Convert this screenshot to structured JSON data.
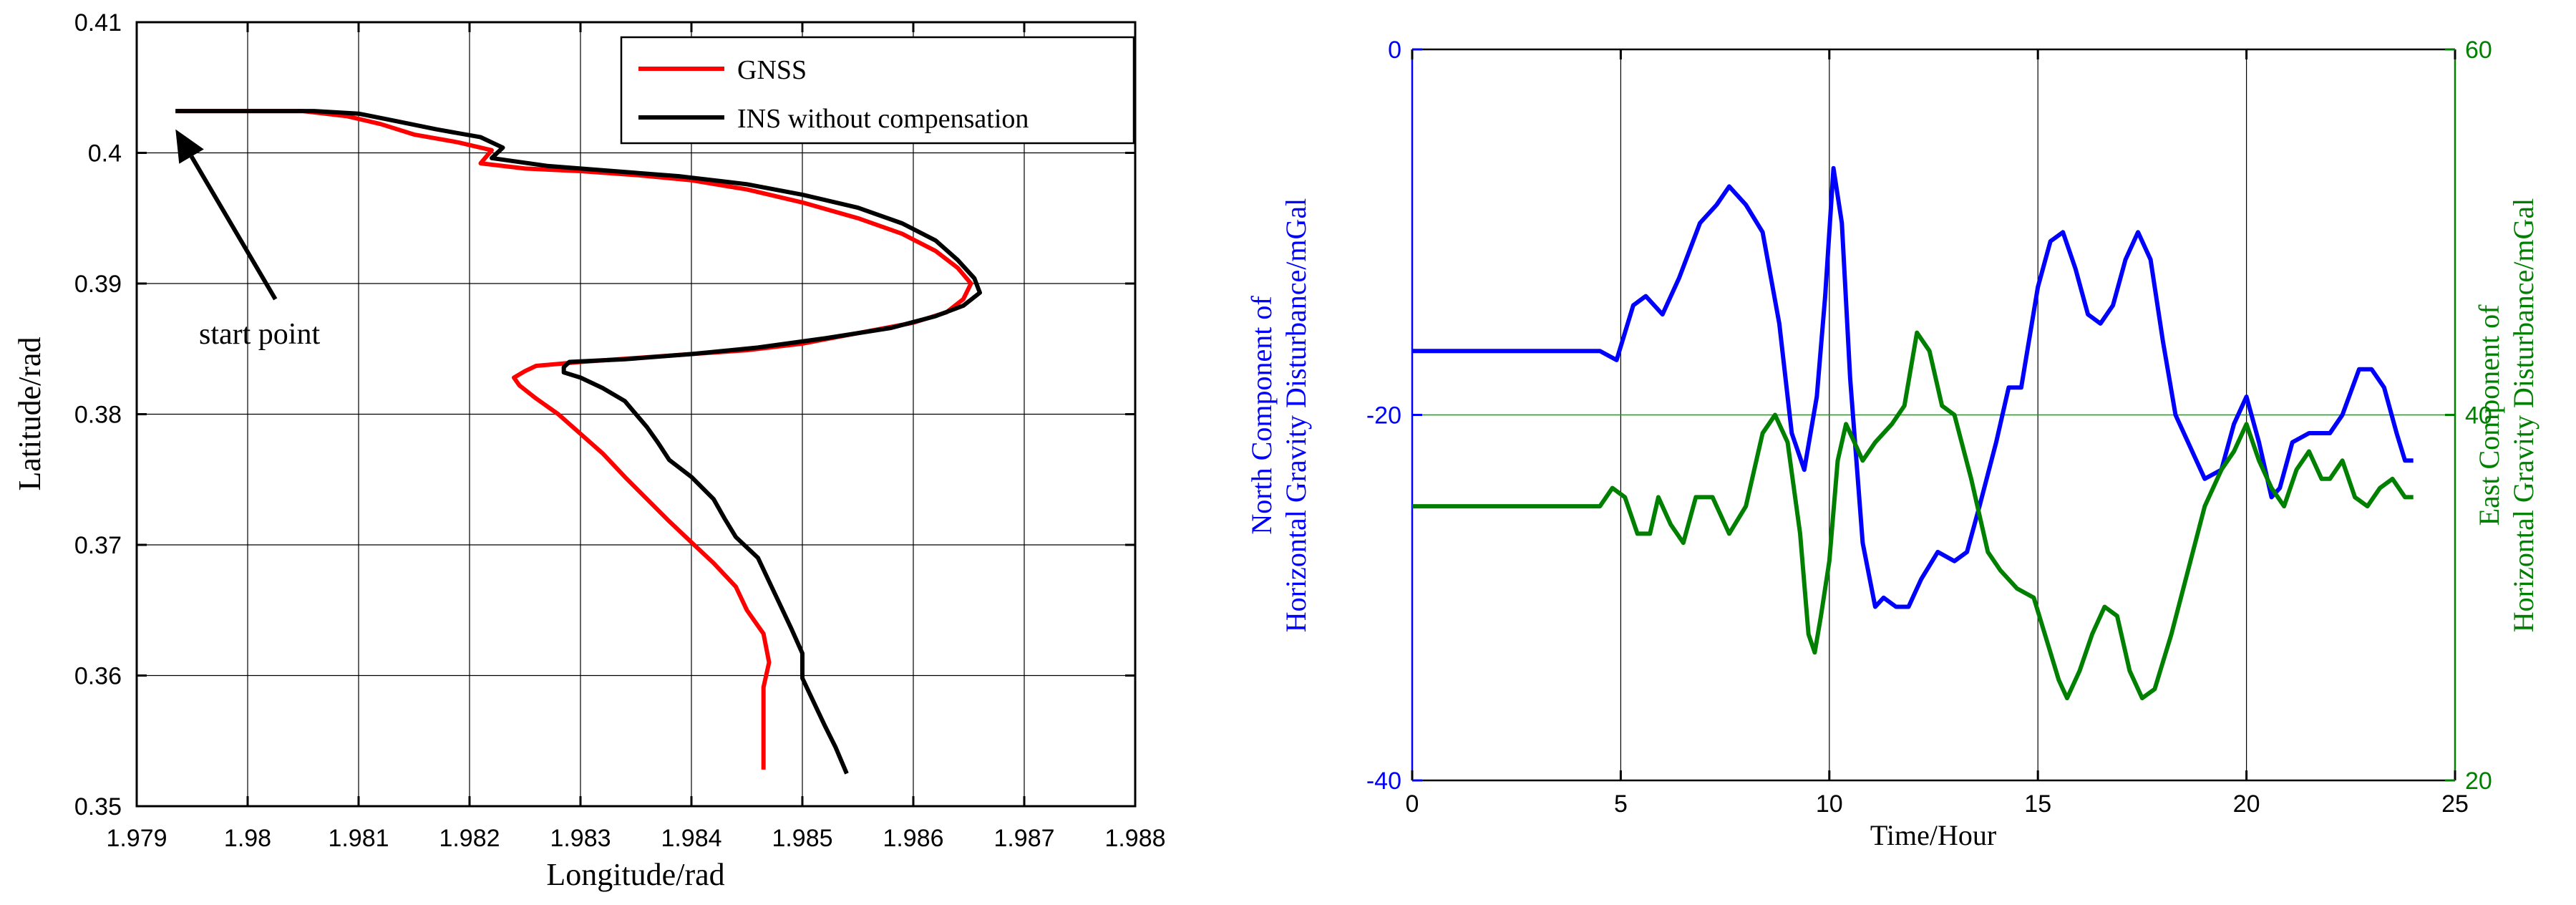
{
  "chart_data": [
    {
      "type": "line",
      "xlabel": "Longitude/rad",
      "ylabel": "Latitude/rad",
      "xlim": [
        1.979,
        1.988
      ],
      "ylim": [
        0.35,
        0.41
      ],
      "xticks": [
        "1.979",
        "1.98",
        "1.981",
        "1.982",
        "1.983",
        "1.984",
        "1.985",
        "1.986",
        "1.987",
        "1.988"
      ],
      "yticks": [
        "0.35",
        "0.36",
        "0.37",
        "0.38",
        "0.39",
        "0.4",
        "0.41"
      ],
      "grid": true,
      "legend_position": "top-right",
      "annotation": {
        "text": "start point",
        "arrow_from": [
          1.98025,
          0.3888
        ],
        "arrow_to": [
          1.97935,
          0.4018
        ]
      },
      "series": [
        {
          "name": "GNSS",
          "color": "#ff0000",
          "points": [
            [
              1.97935,
              0.4032
            ],
            [
              1.9805,
              0.4032
            ],
            [
              1.9809,
              0.4028
            ],
            [
              1.9812,
              0.4022
            ],
            [
              1.9815,
              0.4014
            ],
            [
              1.9819,
              0.4008
            ],
            [
              1.9822,
              0.4002
            ],
            [
              1.9821,
              0.3992
            ],
            [
              1.9825,
              0.3988
            ],
            [
              1.983,
              0.3986
            ],
            [
              1.9835,
              0.3983
            ],
            [
              1.984,
              0.3979
            ],
            [
              1.9845,
              0.3972
            ],
            [
              1.985,
              0.3962
            ],
            [
              1.9855,
              0.395
            ],
            [
              1.9859,
              0.3938
            ],
            [
              1.9862,
              0.3925
            ],
            [
              1.9864,
              0.3912
            ],
            [
              1.98652,
              0.39
            ],
            [
              1.98645,
              0.3888
            ],
            [
              1.9863,
              0.3878
            ],
            [
              1.986,
              0.387
            ],
            [
              1.9855,
              0.3862
            ],
            [
              1.985,
              0.3854
            ],
            [
              1.9845,
              0.3849
            ],
            [
              1.984,
              0.3846
            ],
            [
              1.9835,
              0.3843
            ],
            [
              1.983,
              0.384
            ],
            [
              1.9826,
              0.3837
            ],
            [
              1.9825,
              0.3833
            ],
            [
              1.9824,
              0.3828
            ],
            [
              1.98245,
              0.3822
            ],
            [
              1.9826,
              0.3812
            ],
            [
              1.9828,
              0.38
            ],
            [
              1.983,
              0.3785
            ],
            [
              1.9832,
              0.377
            ],
            [
              1.9834,
              0.3752
            ],
            [
              1.9836,
              0.3735
            ],
            [
              1.9838,
              0.3718
            ],
            [
              1.984,
              0.3702
            ],
            [
              1.9842,
              0.3686
            ],
            [
              1.9844,
              0.3668
            ],
            [
              1.9845,
              0.365
            ],
            [
              1.98465,
              0.3632
            ],
            [
              1.9847,
              0.361
            ],
            [
              1.98465,
              0.3591
            ],
            [
              1.98465,
              0.3585
            ],
            [
              1.98465,
              0.3575
            ],
            [
              1.98465,
              0.3553
            ],
            [
              1.98465,
              0.3528
            ]
          ]
        },
        {
          "name": "INS without compensation",
          "color": "#000000",
          "points": [
            [
              1.97935,
              0.4032
            ],
            [
              1.9806,
              0.4032
            ],
            [
              1.981,
              0.403
            ],
            [
              1.9813,
              0.4025
            ],
            [
              1.9817,
              0.4018
            ],
            [
              1.9821,
              0.4012
            ],
            [
              1.9823,
              0.4004
            ],
            [
              1.9822,
              0.3996
            ],
            [
              1.9827,
              0.399
            ],
            [
              1.9833,
              0.3986
            ],
            [
              1.9839,
              0.3982
            ],
            [
              1.9845,
              0.3976
            ],
            [
              1.985,
              0.3968
            ],
            [
              1.9855,
              0.3958
            ],
            [
              1.9859,
              0.3946
            ],
            [
              1.9862,
              0.3933
            ],
            [
              1.9864,
              0.3918
            ],
            [
              1.98655,
              0.3904
            ],
            [
              1.9866,
              0.3893
            ],
            [
              1.98645,
              0.3883
            ],
            [
              1.9862,
              0.3875
            ],
            [
              1.9858,
              0.3866
            ],
            [
              1.9852,
              0.3858
            ],
            [
              1.9846,
              0.3851
            ],
            [
              1.984,
              0.3846
            ],
            [
              1.9834,
              0.3842
            ],
            [
              1.9829,
              0.384
            ],
            [
              1.98285,
              0.3836
            ],
            [
              1.98285,
              0.3832
            ],
            [
              1.983,
              0.3828
            ],
            [
              1.9832,
              0.382
            ],
            [
              1.9834,
              0.381
            ],
            [
              1.9835,
              0.38
            ],
            [
              1.9836,
              0.379
            ],
            [
              1.9837,
              0.3778
            ],
            [
              1.9838,
              0.3765
            ],
            [
              1.984,
              0.3752
            ],
            [
              1.9842,
              0.3735
            ],
            [
              1.9843,
              0.372
            ],
            [
              1.9844,
              0.3706
            ],
            [
              1.9846,
              0.369
            ],
            [
              1.9847,
              0.3672
            ],
            [
              1.9848,
              0.3654
            ],
            [
              1.9849,
              0.3636
            ],
            [
              1.985,
              0.3617
            ],
            [
              1.985,
              0.3598
            ],
            [
              1.9851,
              0.358
            ],
            [
              1.9852,
              0.3562
            ],
            [
              1.9853,
              0.3545
            ],
            [
              1.9854,
              0.3525
            ]
          ]
        }
      ]
    },
    {
      "type": "line",
      "xlabel": "Time/Hour",
      "ylabel_left": "North Component of\nHorizontal Gravity Disturbance/mGal",
      "ylabel_right": "East Component of\nHorizontal Gravity Disturbance/mGal",
      "xlim": [
        0,
        25
      ],
      "ylim_left": [
        -40,
        0
      ],
      "ylim_right": [
        20,
        60
      ],
      "xticks": [
        "0",
        "5",
        "10",
        "15",
        "20",
        "25"
      ],
      "yticks_left": [
        "-40",
        "-20",
        "0"
      ],
      "yticks_right": [
        "20",
        "40",
        "60"
      ],
      "grid": true,
      "series": [
        {
          "axis": "left",
          "color": "#0000ff",
          "x": [
            0,
            4.5,
            4.9,
            5.3,
            5.6,
            6.0,
            6.4,
            6.9,
            7.3,
            7.6,
            8.0,
            8.4,
            8.8,
            9.1,
            9.4,
            9.7,
            9.9,
            10.1,
            10.3,
            10.5,
            10.8,
            11.1,
            11.3,
            11.6,
            11.9,
            12.2,
            12.6,
            13.0,
            13.3,
            13.6,
            14.0,
            14.3,
            14.6,
            15.0,
            15.3,
            15.6,
            15.9,
            16.2,
            16.5,
            16.8,
            17.1,
            17.4,
            17.7,
            18.0,
            18.3,
            18.6,
            19.0,
            19.4,
            19.7,
            20.0,
            20.3,
            20.6,
            20.8,
            21.1,
            21.5,
            21.8,
            22.0,
            22.3,
            22.7,
            23.0,
            23.3,
            23.6,
            23.8,
            24.0
          ],
          "values": [
            -16.5,
            -16.5,
            -17.0,
            -14.0,
            -13.5,
            -14.5,
            -12.5,
            -9.5,
            -8.5,
            -7.5,
            -8.5,
            -10.0,
            -15.0,
            -21.0,
            -23.0,
            -19.0,
            -13.5,
            -6.5,
            -9.5,
            -18.0,
            -27.0,
            -30.5,
            -30.0,
            -30.5,
            -30.5,
            -29.0,
            -27.5,
            -28.0,
            -27.5,
            -25.0,
            -21.5,
            -18.5,
            -18.5,
            -13.0,
            -10.5,
            -10.0,
            -12.0,
            -14.5,
            -15.0,
            -14.0,
            -11.5,
            -10.0,
            -11.5,
            -16.0,
            -20.0,
            -21.5,
            -23.5,
            -23.0,
            -20.5,
            -19.0,
            -21.5,
            -24.5,
            -24.0,
            -21.5,
            -21.0,
            -21.0,
            -21.0,
            -20.0,
            -17.5,
            -17.5,
            -18.5,
            -21.0,
            -22.5,
            -22.5
          ]
        },
        {
          "axis": "right",
          "color": "#008000",
          "x": [
            0,
            4.2,
            4.5,
            4.8,
            5.1,
            5.4,
            5.7,
            5.9,
            6.2,
            6.5,
            6.8,
            7.2,
            7.6,
            8.0,
            8.4,
            8.7,
            9.0,
            9.3,
            9.5,
            9.65,
            9.8,
            10.0,
            10.2,
            10.4,
            10.6,
            10.8,
            11.1,
            11.5,
            11.8,
            12.1,
            12.4,
            12.7,
            13.0,
            13.4,
            13.8,
            14.1,
            14.5,
            14.9,
            15.3,
            15.5,
            15.7,
            16.0,
            16.3,
            16.6,
            16.9,
            17.2,
            17.5,
            17.8,
            18.2,
            18.6,
            19.0,
            19.4,
            19.7,
            20.0,
            20.3,
            20.6,
            20.9,
            21.2,
            21.5,
            21.8,
            22.0,
            22.3,
            22.6,
            22.9,
            23.2,
            23.5,
            23.8,
            24.0
          ],
          "values": [
            35,
            35,
            35,
            36,
            35.5,
            33.5,
            33.5,
            35.5,
            34,
            33,
            35.5,
            35.5,
            33.5,
            35,
            39,
            40,
            38.5,
            33.5,
            28,
            27,
            29,
            32,
            37.5,
            39.5,
            38.5,
            37.5,
            38.5,
            39.5,
            40.5,
            44.5,
            43.5,
            40.5,
            40,
            36.5,
            32.5,
            31.5,
            30.5,
            30,
            27,
            25.5,
            24.5,
            26,
            28,
            29.5,
            29,
            26,
            24.5,
            25,
            28,
            31.5,
            35,
            37,
            38,
            39.5,
            37.5,
            36,
            35,
            37,
            38,
            36.5,
            36.5,
            37.5,
            35.5,
            35,
            36,
            36.5,
            35.5,
            35.5
          ]
        }
      ]
    }
  ]
}
